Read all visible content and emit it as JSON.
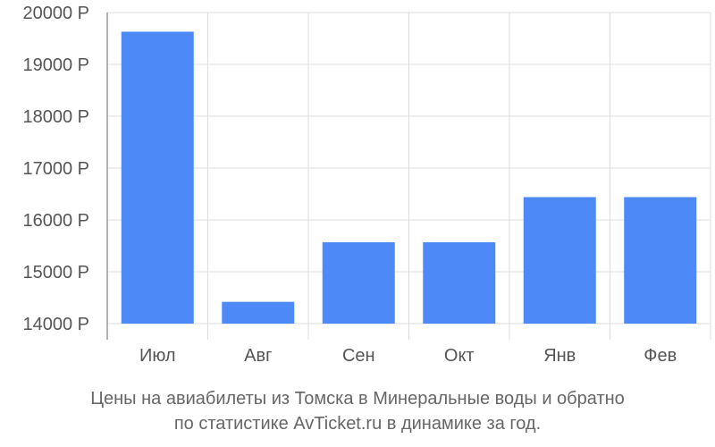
{
  "chart_data": {
    "type": "bar",
    "title": "",
    "xlabel": "",
    "ylabel": "",
    "categories": [
      "Июл",
      "Авг",
      "Сен",
      "Окт",
      "Янв",
      "Фев"
    ],
    "values": [
      19630,
      14420,
      15570,
      15570,
      16440,
      16440
    ],
    "ylim": [
      14000,
      20000
    ],
    "yticks": [
      14000,
      15000,
      16000,
      17000,
      18000,
      19000,
      20000
    ],
    "ytick_labels": [
      "14000 Р",
      "15000 Р",
      "16000 Р",
      "17000 Р",
      "18000 Р",
      "19000 Р",
      "20000 Р"
    ],
    "grid": true,
    "bar_color": "#4d8af8",
    "grid_color": "#dddddd"
  },
  "caption": {
    "line1": "Цены на авиабилеты из Томска в Минеральные воды и обратно",
    "line2": "по статистике AvTicket.ru в динамике за год."
  }
}
